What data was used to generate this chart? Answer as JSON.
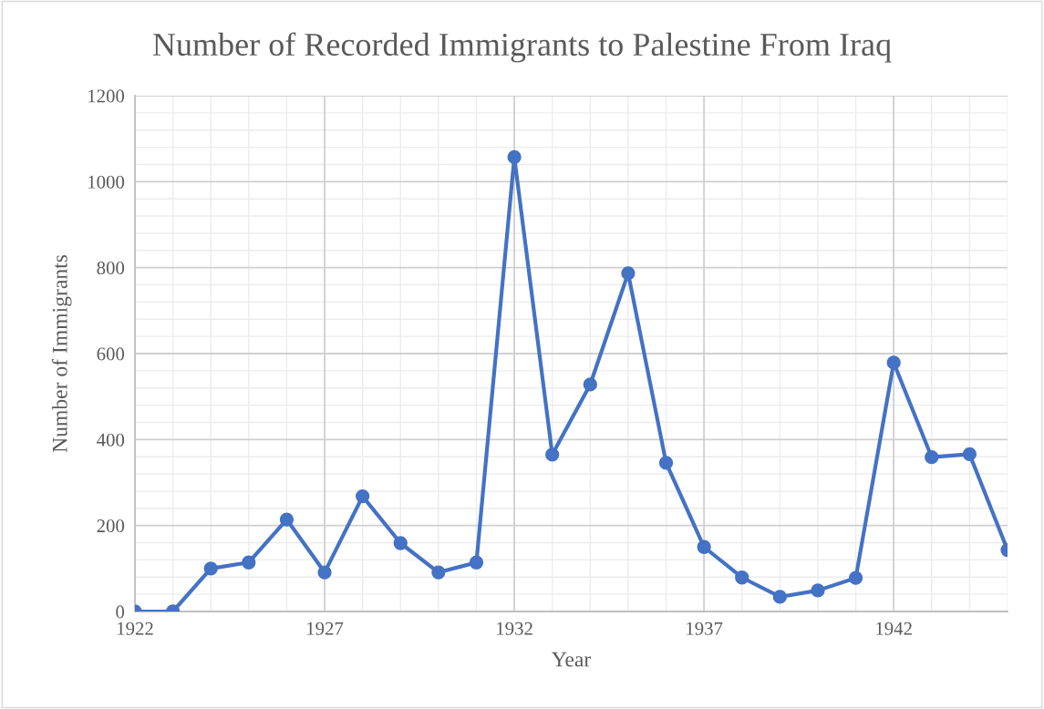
{
  "chart_data": {
    "type": "line",
    "title": "Number of Recorded Immigrants to Palestine From Iraq",
    "xlabel": "Year",
    "ylabel": "Number of Immigrants",
    "x": [
      1922,
      1923,
      1924,
      1925,
      1926,
      1927,
      1928,
      1929,
      1930,
      1931,
      1932,
      1933,
      1934,
      1935,
      1936,
      1937,
      1938,
      1939,
      1940,
      1941,
      1942,
      1943,
      1944,
      1945
    ],
    "series": [
      {
        "color": "#4472c4",
        "values": [
          0,
          0,
          100,
          114,
          214,
          91,
          268,
          159,
          91,
          114,
          1057,
          365,
          528,
          787,
          346,
          150,
          79,
          34,
          49,
          78,
          579,
          359,
          366,
          143
        ]
      }
    ],
    "xlim": [
      1922,
      1945
    ],
    "xticks": [
      1922,
      1927,
      1932,
      1937,
      1942
    ],
    "ylim": [
      0,
      1200
    ],
    "yticks": [
      0,
      200,
      400,
      600,
      800,
      1000,
      1200
    ],
    "grid": true,
    "legend": false,
    "marker": "circle",
    "line_style": "solid"
  }
}
